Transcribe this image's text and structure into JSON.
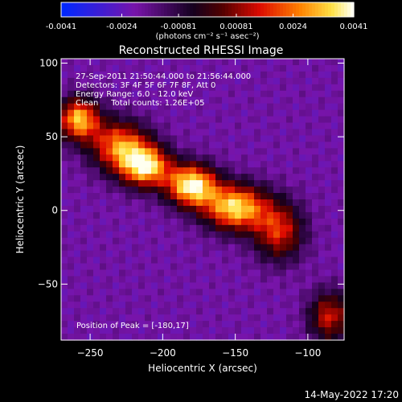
{
  "chart_data": {
    "type": "heatmap",
    "title": "Reconstructed RHESSI Image",
    "xlabel": "Heliocentric X (arcsec)",
    "ylabel": "Heliocentric Y (arcsec)",
    "xlim": [
      -270,
      -75
    ],
    "ylim": [
      -88,
      103
    ],
    "x_ticks": [
      -250,
      -200,
      -150,
      -100
    ],
    "y_ticks": [
      100,
      50,
      0,
      -50
    ],
    "colorbar": {
      "range": [
        -0.0041,
        0.0041
      ],
      "ticks": [
        {
          "value": -0.0041,
          "label": "-0.0041"
        },
        {
          "value": -0.0024,
          "label": "-0.0024"
        },
        {
          "value": -0.00081,
          "label": "-0.00081"
        },
        {
          "value": 0.00081,
          "label": "0.00081"
        },
        {
          "value": 0.0024,
          "label": "0.0024"
        },
        {
          "value": 0.0041,
          "label": "0.0041"
        }
      ],
      "units_label": "(photons cm⁻² s⁻¹ asec⁻²)"
    },
    "annotations": [
      "27-Sep-2011 21:50:44.000 to 21:56:44.000",
      "Detectors: 3F 4F 5F 6F 7F 8F, Att 0",
      "Energy Range: 6.0 - 12.0 keV",
      "Clean     Total counts: 1.26E+05"
    ],
    "peak_label": "Position of Peak = [-180,17]",
    "sources": [
      {
        "x": -180,
        "y": 17,
        "amplitude": 0.0041,
        "sx": 12,
        "sy": 10
      },
      {
        "x": -212,
        "y": 30,
        "amplitude": 0.0036,
        "sx": 12,
        "sy": 10
      },
      {
        "x": -150,
        "y": 2,
        "amplitude": 0.0036,
        "sx": 15,
        "sy": 11
      },
      {
        "x": -258,
        "y": 62,
        "amplitude": 0.0032,
        "sx": 10,
        "sy": 10
      },
      {
        "x": -230,
        "y": 44,
        "amplitude": 0.0024,
        "sx": 14,
        "sy": 12
      },
      {
        "x": -120,
        "y": -14,
        "amplitude": 0.0016,
        "sx": 12,
        "sy": 14
      },
      {
        "x": -85,
        "y": -72,
        "amplitude": 0.0014,
        "sx": 10,
        "sy": 12
      }
    ],
    "background": -0.002
  },
  "footer": {
    "timestamp": "14-May-2022 17:20"
  }
}
